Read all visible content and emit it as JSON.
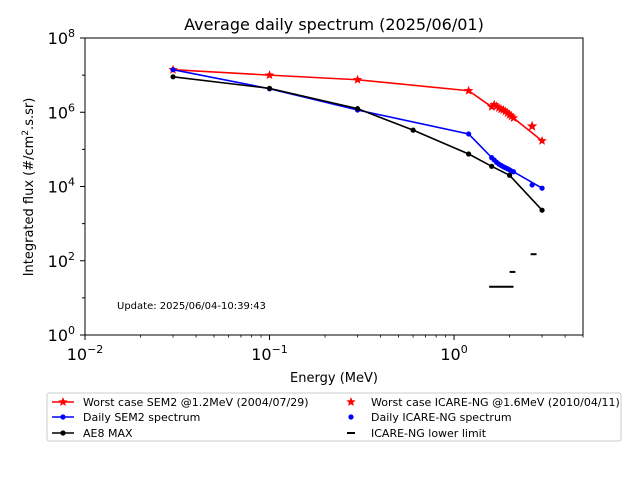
{
  "chart_data": {
    "type": "line",
    "title": "Average daily spectrum (2025/06/01)",
    "xlabel": "Energy (MeV)",
    "ylabel_main": "Integrated flux (#/cm",
    "ylabel_sup": "2",
    "ylabel_tail": ".s.sr)",
    "xscale": "log",
    "yscale": "log",
    "xlim": [
      0.01,
      5.0
    ],
    "ylim": [
      1,
      100000000
    ],
    "x_ticks": [
      {
        "value": 0.01,
        "base": "10",
        "exp": "−2"
      },
      {
        "value": 0.1,
        "base": "10",
        "exp": "−1"
      },
      {
        "value": 1,
        "base": "10",
        "exp": "0"
      }
    ],
    "y_ticks": [
      {
        "value": 1,
        "base": "10",
        "exp": "0"
      },
      {
        "value": 100,
        "base": "10",
        "exp": "2"
      },
      {
        "value": 10000,
        "base": "10",
        "exp": "4"
      },
      {
        "value": 1000000,
        "base": "10",
        "exp": "6"
      },
      {
        "value": 100000000,
        "base": "10",
        "exp": "8"
      }
    ],
    "annotation": "Update: 2025/06/04-10:39:43",
    "legend_position": "below",
    "series": [
      {
        "name": "Worst case SEM2 @1.2MeV (2004/07/29)",
        "color": "#ff0000",
        "marker": "star",
        "line": true,
        "x": [
          0.03,
          0.1,
          0.3,
          1.2,
          1.6,
          1.65,
          1.7,
          1.75,
          1.8,
          1.85,
          1.9,
          1.95,
          2.0,
          2.05,
          2.1,
          3.0
        ],
        "y": [
          14000000,
          10000000,
          7500000,
          3800000,
          1400000,
          1600000,
          1450000,
          1300000,
          1200000,
          1150000,
          1050000,
          950000,
          850000,
          780000,
          700000,
          170000
        ]
      },
      {
        "name": "Daily SEM2 spectrum",
        "color": "#0000ff",
        "marker": "dot",
        "line": true,
        "x": [
          0.03,
          0.1,
          0.3,
          1.2,
          1.6,
          1.65,
          1.7,
          1.75,
          1.8,
          1.85,
          1.9,
          1.95,
          2.0,
          2.05,
          2.1,
          3.0
        ],
        "y": [
          14000000,
          4300000,
          1150000,
          260000,
          60000,
          52000,
          45000,
          40000,
          37000,
          34000,
          32000,
          30000,
          28000,
          26000,
          25000,
          9000
        ]
      },
      {
        "name": "AE8 MAX",
        "color": "#000000",
        "marker": "dot",
        "line": true,
        "x": [
          0.03,
          0.1,
          0.3,
          0.6,
          1.2,
          1.6,
          2.0,
          3.0
        ],
        "y": [
          9000000,
          4400000,
          1250000,
          330000,
          75000,
          35000,
          20000,
          2300
        ]
      },
      {
        "name": "Worst case ICARE-NG @1.6MeV (2010/04/11)",
        "color": "#ff0000",
        "marker": "star",
        "line": false,
        "x": [
          2.65
        ],
        "y": [
          420000
        ]
      },
      {
        "name": "Daily ICARE-NG spectrum",
        "color": "#0000ff",
        "marker": "dot",
        "line": false,
        "x": [
          2.65
        ],
        "y": [
          11000
        ]
      },
      {
        "name": "ICARE-NG lower limit",
        "color": "#000000",
        "marker": "hline",
        "line": false,
        "segments": [
          {
            "x0": 1.55,
            "x1": 2.1,
            "y": 20
          },
          {
            "x0": 2.0,
            "x1": 2.15,
            "y": 50
          },
          {
            "x0": 2.6,
            "x1": 2.8,
            "y": 150
          }
        ]
      }
    ],
    "legend_columns": [
      [
        "Worst case SEM2 @1.2MeV (2004/07/29)",
        "Daily SEM2 spectrum",
        "AE8 MAX"
      ],
      [
        "Worst case ICARE-NG @1.6MeV (2010/04/11)",
        "Daily ICARE-NG spectrum",
        "ICARE-NG lower limit"
      ]
    ]
  }
}
